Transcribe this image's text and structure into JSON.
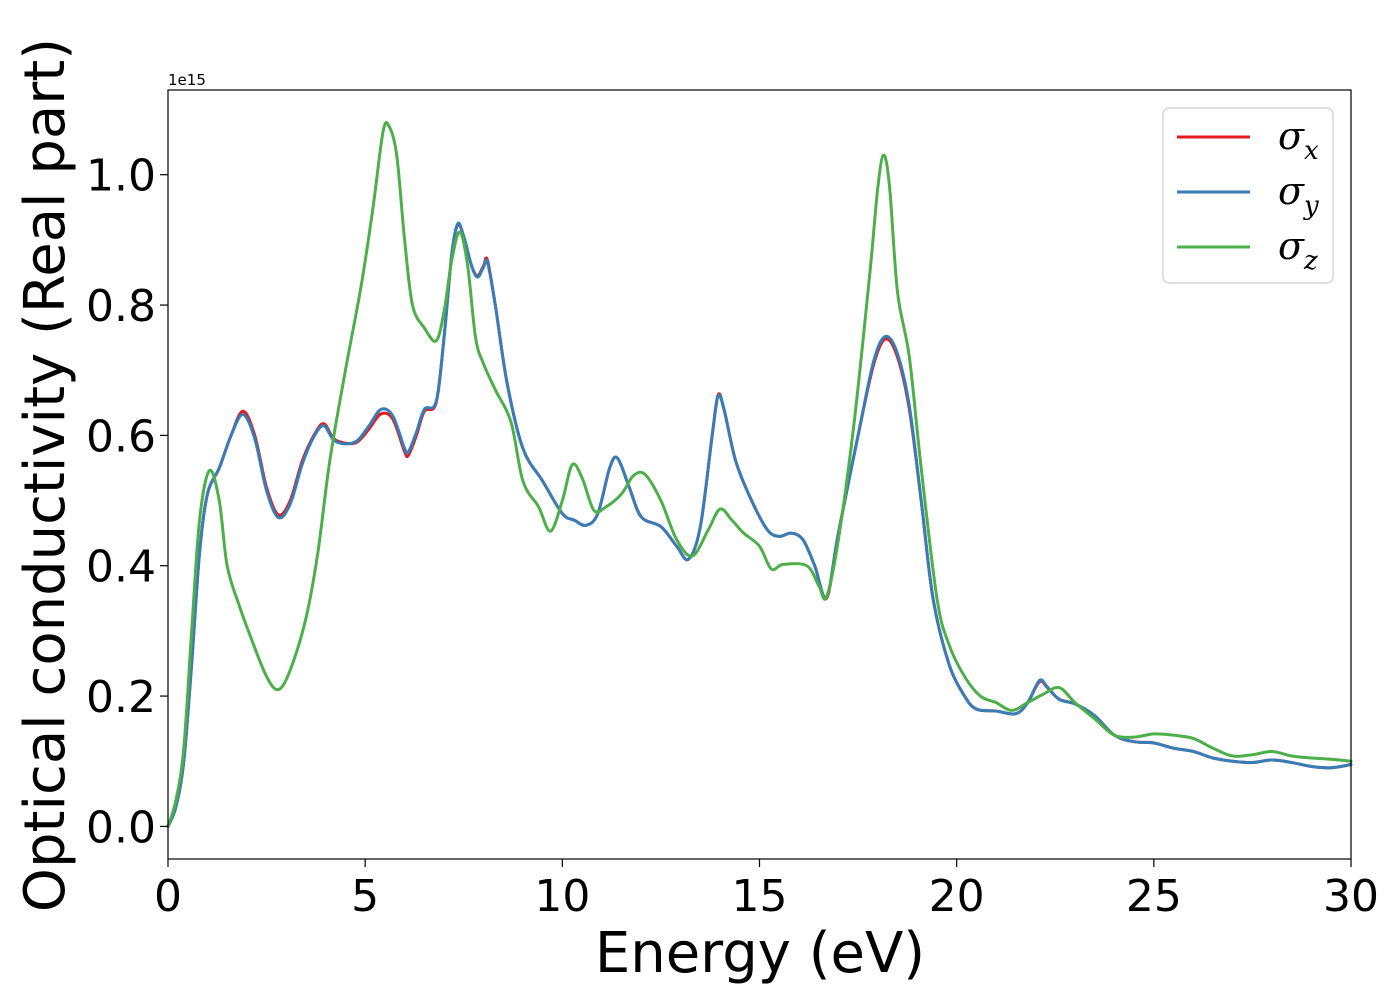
{
  "chart_data": {
    "type": "line",
    "xlabel": "Energy (eV)",
    "ylabel": "Optical conductivity (Real part)",
    "y_offset_label": "1e15",
    "xlim": [
      0,
      30
    ],
    "ylim": [
      -0.05,
      1.13
    ],
    "x_ticks": [
      0,
      5,
      10,
      15,
      20,
      25,
      30
    ],
    "x_tick_labels": [
      "0",
      "5",
      "10",
      "15",
      "20",
      "25",
      "30"
    ],
    "y_ticks": [
      0.0,
      0.2,
      0.4,
      0.6,
      0.8,
      1.0
    ],
    "y_tick_labels": [
      "0.0",
      "0.2",
      "0.4",
      "0.6",
      "0.8",
      "1.0"
    ],
    "grid": false,
    "legend_position": "top-right",
    "series": [
      {
        "name": "σx",
        "name_base": "σ",
        "name_sub": "x",
        "color": "#e41a1c",
        "points": [
          [
            0,
            0
          ],
          [
            0.2,
            0.03
          ],
          [
            0.4,
            0.1
          ],
          [
            0.6,
            0.25
          ],
          [
            0.8,
            0.42
          ],
          [
            1.0,
            0.51
          ],
          [
            1.3,
            0.55
          ],
          [
            1.6,
            0.6
          ],
          [
            1.9,
            0.637
          ],
          [
            2.2,
            0.6
          ],
          [
            2.5,
            0.52
          ],
          [
            2.8,
            0.478
          ],
          [
            3.1,
            0.5
          ],
          [
            3.4,
            0.56
          ],
          [
            3.7,
            0.6
          ],
          [
            3.95,
            0.618
          ],
          [
            4.2,
            0.595
          ],
          [
            4.5,
            0.588
          ],
          [
            4.8,
            0.59
          ],
          [
            5.1,
            0.61
          ],
          [
            5.4,
            0.633
          ],
          [
            5.7,
            0.625
          ],
          [
            6.0,
            0.575
          ],
          [
            6.1,
            0.57
          ],
          [
            6.3,
            0.6
          ],
          [
            6.5,
            0.637
          ],
          [
            6.8,
            0.65
          ],
          [
            7.0,
            0.75
          ],
          [
            7.2,
            0.88
          ],
          [
            7.35,
            0.923
          ],
          [
            7.5,
            0.905
          ],
          [
            7.7,
            0.86
          ],
          [
            7.85,
            0.845
          ],
          [
            8.0,
            0.86
          ],
          [
            8.1,
            0.869
          ],
          [
            8.3,
            0.8
          ],
          [
            8.6,
            0.68
          ],
          [
            9.0,
            0.58
          ],
          [
            9.5,
            0.53
          ],
          [
            10.0,
            0.48
          ],
          [
            10.3,
            0.47
          ],
          [
            10.6,
            0.462
          ],
          [
            10.9,
            0.48
          ],
          [
            11.2,
            0.55
          ],
          [
            11.4,
            0.565
          ],
          [
            11.7,
            0.52
          ],
          [
            12.0,
            0.475
          ],
          [
            12.5,
            0.46
          ],
          [
            12.9,
            0.43
          ],
          [
            13.2,
            0.41
          ],
          [
            13.5,
            0.46
          ],
          [
            13.8,
            0.6
          ],
          [
            13.95,
            0.662
          ],
          [
            14.1,
            0.64
          ],
          [
            14.4,
            0.56
          ],
          [
            14.8,
            0.5
          ],
          [
            15.2,
            0.455
          ],
          [
            15.5,
            0.445
          ],
          [
            15.8,
            0.45
          ],
          [
            16.1,
            0.44
          ],
          [
            16.4,
            0.4
          ],
          [
            16.7,
            0.35
          ],
          [
            17.0,
            0.45
          ],
          [
            17.5,
            0.6
          ],
          [
            17.9,
            0.71
          ],
          [
            18.2,
            0.748
          ],
          [
            18.5,
            0.72
          ],
          [
            18.8,
            0.64
          ],
          [
            19.1,
            0.5
          ],
          [
            19.4,
            0.35
          ],
          [
            19.8,
            0.25
          ],
          [
            20.2,
            0.2
          ],
          [
            20.5,
            0.18
          ],
          [
            21.0,
            0.177
          ],
          [
            21.5,
            0.173
          ],
          [
            21.8,
            0.19
          ],
          [
            22.1,
            0.222
          ],
          [
            22.3,
            0.213
          ],
          [
            22.6,
            0.195
          ],
          [
            23.0,
            0.188
          ],
          [
            23.5,
            0.17
          ],
          [
            24.0,
            0.14
          ],
          [
            24.5,
            0.13
          ],
          [
            25.0,
            0.128
          ],
          [
            25.5,
            0.12
          ],
          [
            26.0,
            0.115
          ],
          [
            26.5,
            0.105
          ],
          [
            27.0,
            0.1
          ],
          [
            27.5,
            0.098
          ],
          [
            28.0,
            0.102
          ],
          [
            28.5,
            0.098
          ],
          [
            29.0,
            0.092
          ],
          [
            29.5,
            0.09
          ],
          [
            30.0,
            0.095
          ]
        ]
      },
      {
        "name": "σy",
        "name_base": "σ",
        "name_sub": "y",
        "color": "#377eb8",
        "points": [
          [
            0,
            0
          ],
          [
            0.2,
            0.03
          ],
          [
            0.4,
            0.1
          ],
          [
            0.6,
            0.25
          ],
          [
            0.8,
            0.42
          ],
          [
            1.0,
            0.51
          ],
          [
            1.3,
            0.55
          ],
          [
            1.6,
            0.6
          ],
          [
            1.9,
            0.632
          ],
          [
            2.2,
            0.595
          ],
          [
            2.5,
            0.515
          ],
          [
            2.8,
            0.474
          ],
          [
            3.1,
            0.495
          ],
          [
            3.4,
            0.555
          ],
          [
            3.7,
            0.598
          ],
          [
            3.95,
            0.615
          ],
          [
            4.2,
            0.593
          ],
          [
            4.5,
            0.587
          ],
          [
            4.8,
            0.592
          ],
          [
            5.1,
            0.615
          ],
          [
            5.4,
            0.64
          ],
          [
            5.7,
            0.63
          ],
          [
            6.0,
            0.58
          ],
          [
            6.1,
            0.575
          ],
          [
            6.3,
            0.605
          ],
          [
            6.5,
            0.64
          ],
          [
            6.8,
            0.652
          ],
          [
            7.0,
            0.75
          ],
          [
            7.2,
            0.88
          ],
          [
            7.35,
            0.925
          ],
          [
            7.5,
            0.905
          ],
          [
            7.7,
            0.86
          ],
          [
            7.85,
            0.843
          ],
          [
            8.0,
            0.858
          ],
          [
            8.1,
            0.866
          ],
          [
            8.3,
            0.8
          ],
          [
            8.6,
            0.68
          ],
          [
            9.0,
            0.58
          ],
          [
            9.5,
            0.53
          ],
          [
            10.0,
            0.48
          ],
          [
            10.3,
            0.47
          ],
          [
            10.6,
            0.462
          ],
          [
            10.9,
            0.48
          ],
          [
            11.2,
            0.55
          ],
          [
            11.4,
            0.565
          ],
          [
            11.7,
            0.52
          ],
          [
            12.0,
            0.475
          ],
          [
            12.5,
            0.46
          ],
          [
            12.9,
            0.43
          ],
          [
            13.2,
            0.41
          ],
          [
            13.5,
            0.46
          ],
          [
            13.8,
            0.6
          ],
          [
            13.95,
            0.66
          ],
          [
            14.1,
            0.64
          ],
          [
            14.4,
            0.56
          ],
          [
            14.8,
            0.5
          ],
          [
            15.2,
            0.455
          ],
          [
            15.5,
            0.445
          ],
          [
            15.8,
            0.45
          ],
          [
            16.1,
            0.44
          ],
          [
            16.4,
            0.4
          ],
          [
            16.7,
            0.352
          ],
          [
            17.0,
            0.45
          ],
          [
            17.5,
            0.6
          ],
          [
            17.9,
            0.715
          ],
          [
            18.2,
            0.752
          ],
          [
            18.5,
            0.725
          ],
          [
            18.8,
            0.645
          ],
          [
            19.1,
            0.5
          ],
          [
            19.4,
            0.35
          ],
          [
            19.8,
            0.25
          ],
          [
            20.2,
            0.2
          ],
          [
            20.5,
            0.18
          ],
          [
            21.0,
            0.177
          ],
          [
            21.5,
            0.173
          ],
          [
            21.8,
            0.19
          ],
          [
            22.1,
            0.224
          ],
          [
            22.3,
            0.214
          ],
          [
            22.6,
            0.195
          ],
          [
            23.0,
            0.188
          ],
          [
            23.5,
            0.17
          ],
          [
            24.0,
            0.14
          ],
          [
            24.5,
            0.13
          ],
          [
            25.0,
            0.128
          ],
          [
            25.5,
            0.12
          ],
          [
            26.0,
            0.115
          ],
          [
            26.5,
            0.105
          ],
          [
            27.0,
            0.1
          ],
          [
            27.5,
            0.098
          ],
          [
            28.0,
            0.102
          ],
          [
            28.5,
            0.098
          ],
          [
            29.0,
            0.092
          ],
          [
            29.5,
            0.09
          ],
          [
            30.0,
            0.095
          ]
        ]
      },
      {
        "name": "σz",
        "name_base": "σ",
        "name_sub": "z",
        "color": "#4daf4a",
        "points": [
          [
            0,
            0
          ],
          [
            0.2,
            0.04
          ],
          [
            0.4,
            0.12
          ],
          [
            0.6,
            0.3
          ],
          [
            0.8,
            0.47
          ],
          [
            1.05,
            0.546
          ],
          [
            1.3,
            0.5
          ],
          [
            1.5,
            0.4
          ],
          [
            1.8,
            0.34
          ],
          [
            2.1,
            0.29
          ],
          [
            2.5,
            0.23
          ],
          [
            2.8,
            0.21
          ],
          [
            3.1,
            0.24
          ],
          [
            3.5,
            0.32
          ],
          [
            3.8,
            0.42
          ],
          [
            4.1,
            0.56
          ],
          [
            4.5,
            0.7
          ],
          [
            4.9,
            0.83
          ],
          [
            5.2,
            0.95
          ],
          [
            5.45,
            1.065
          ],
          [
            5.6,
            1.075
          ],
          [
            5.8,
            1.03
          ],
          [
            6.0,
            0.9
          ],
          [
            6.2,
            0.8
          ],
          [
            6.5,
            0.765
          ],
          [
            6.8,
            0.745
          ],
          [
            7.0,
            0.79
          ],
          [
            7.2,
            0.87
          ],
          [
            7.4,
            0.912
          ],
          [
            7.6,
            0.86
          ],
          [
            7.8,
            0.75
          ],
          [
            8.0,
            0.71
          ],
          [
            8.3,
            0.67
          ],
          [
            8.7,
            0.62
          ],
          [
            9.0,
            0.53
          ],
          [
            9.4,
            0.49
          ],
          [
            9.7,
            0.453
          ],
          [
            10.0,
            0.5
          ],
          [
            10.25,
            0.555
          ],
          [
            10.5,
            0.535
          ],
          [
            10.8,
            0.485
          ],
          [
            11.1,
            0.49
          ],
          [
            11.5,
            0.51
          ],
          [
            11.8,
            0.538
          ],
          [
            12.1,
            0.54
          ],
          [
            12.5,
            0.5
          ],
          [
            12.9,
            0.44
          ],
          [
            13.3,
            0.415
          ],
          [
            13.7,
            0.455
          ],
          [
            14.0,
            0.487
          ],
          [
            14.3,
            0.47
          ],
          [
            14.6,
            0.45
          ],
          [
            15.0,
            0.43
          ],
          [
            15.3,
            0.395
          ],
          [
            15.6,
            0.402
          ],
          [
            16.2,
            0.4
          ],
          [
            16.5,
            0.37
          ],
          [
            16.7,
            0.352
          ],
          [
            17.0,
            0.44
          ],
          [
            17.4,
            0.62
          ],
          [
            17.8,
            0.85
          ],
          [
            18.0,
            0.98
          ],
          [
            18.15,
            1.03
          ],
          [
            18.3,
            0.98
          ],
          [
            18.5,
            0.82
          ],
          [
            18.8,
            0.72
          ],
          [
            19.1,
            0.55
          ],
          [
            19.5,
            0.35
          ],
          [
            19.8,
            0.28
          ],
          [
            20.2,
            0.23
          ],
          [
            20.6,
            0.2
          ],
          [
            21.0,
            0.19
          ],
          [
            21.4,
            0.178
          ],
          [
            21.8,
            0.19
          ],
          [
            22.2,
            0.203
          ],
          [
            22.6,
            0.213
          ],
          [
            23.0,
            0.19
          ],
          [
            23.5,
            0.165
          ],
          [
            24.0,
            0.14
          ],
          [
            24.5,
            0.137
          ],
          [
            25.0,
            0.142
          ],
          [
            25.5,
            0.14
          ],
          [
            26.0,
            0.135
          ],
          [
            26.5,
            0.12
          ],
          [
            27.0,
            0.108
          ],
          [
            27.5,
            0.11
          ],
          [
            28.0,
            0.115
          ],
          [
            28.5,
            0.108
          ],
          [
            29.0,
            0.105
          ],
          [
            29.5,
            0.103
          ],
          [
            30.0,
            0.1
          ]
        ]
      }
    ]
  }
}
